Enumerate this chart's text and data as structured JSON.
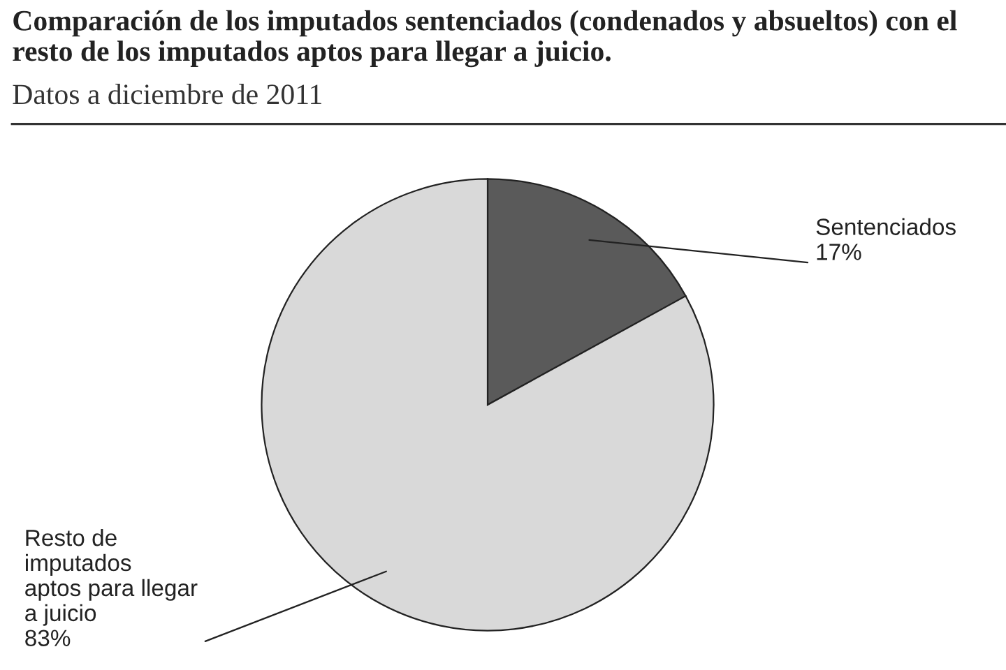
{
  "chart_data": {
    "type": "pie",
    "title": "Comparación de los imputados sentenciados (condenados y absueltos) con el resto de los imputados aptos para llegar a juicio.",
    "subtitle": "Datos a diciembre de 2011",
    "categories": [
      "Sentenciados",
      "Resto de\nimputados\naptos para llegar\na juicio"
    ],
    "values": [
      17,
      83
    ],
    "value_labels": [
      "17%",
      "83%"
    ],
    "colors": [
      "#5a5a5a",
      "#d9d9d9"
    ],
    "legend": false
  }
}
